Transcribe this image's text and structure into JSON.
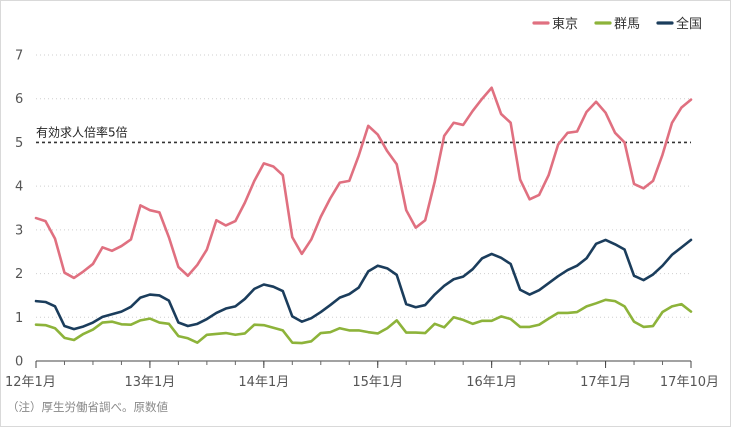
{
  "chart_data": {
    "type": "line",
    "title": "",
    "xlabel": "",
    "ylabel": "",
    "ylim": [
      0,
      7
    ],
    "yticks": [
      0,
      1,
      2,
      3,
      4,
      5,
      6,
      7
    ],
    "grid": "horizontal dotted",
    "legend_position": "top-right",
    "x_start": "2012-01",
    "x_end": "2017-10",
    "xtick_labels": [
      {
        "month": "2012-01",
        "label": "12年1月"
      },
      {
        "month": "2013-01",
        "label": "13年1月"
      },
      {
        "month": "2014-01",
        "label": "14年1月"
      },
      {
        "month": "2015-01",
        "label": "15年1月"
      },
      {
        "month": "2016-01",
        "label": "16年1月"
      },
      {
        "month": "2017-01",
        "label": "17年1月"
      },
      {
        "month": "2017-10",
        "label": "17年10月"
      }
    ],
    "reference_line": {
      "value": 5,
      "label": "有効求人倍率5倍"
    },
    "series": [
      {
        "name": "東京",
        "color": "#e07080",
        "values": [
          3.27,
          3.2,
          2.8,
          2.02,
          1.9,
          2.05,
          2.22,
          2.6,
          2.52,
          2.63,
          2.78,
          3.56,
          3.45,
          3.4,
          2.83,
          2.15,
          1.95,
          2.2,
          2.55,
          3.22,
          3.1,
          3.2,
          3.62,
          4.12,
          4.52,
          4.45,
          4.25,
          2.83,
          2.45,
          2.78,
          3.3,
          3.72,
          4.08,
          4.12,
          4.7,
          5.38,
          5.18,
          4.8,
          4.5,
          3.45,
          3.05,
          3.22,
          4.1,
          5.15,
          5.45,
          5.4,
          5.72,
          6.0,
          6.25,
          5.65,
          5.45,
          4.15,
          3.7,
          3.8,
          4.25,
          4.95,
          5.22,
          5.25,
          5.7,
          5.93,
          5.68,
          5.22,
          5.0,
          4.05,
          3.95,
          4.12,
          4.72,
          5.45,
          5.8,
          5.98
        ]
      },
      {
        "name": "群馬",
        "color": "#8db33a",
        "values": [
          0.83,
          0.82,
          0.75,
          0.53,
          0.48,
          0.62,
          0.72,
          0.88,
          0.9,
          0.84,
          0.83,
          0.93,
          0.97,
          0.88,
          0.85,
          0.57,
          0.52,
          0.42,
          0.6,
          0.62,
          0.64,
          0.6,
          0.63,
          0.83,
          0.82,
          0.76,
          0.7,
          0.42,
          0.41,
          0.45,
          0.64,
          0.66,
          0.75,
          0.7,
          0.7,
          0.66,
          0.63,
          0.75,
          0.93,
          0.65,
          0.65,
          0.64,
          0.85,
          0.77,
          1.0,
          0.94,
          0.85,
          0.92,
          0.92,
          1.02,
          0.96,
          0.78,
          0.78,
          0.83,
          0.97,
          1.1,
          1.1,
          1.12,
          1.25,
          1.32,
          1.4,
          1.37,
          1.25,
          0.9,
          0.78,
          0.8,
          1.12,
          1.25,
          1.3,
          1.13
        ]
      },
      {
        "name": "全国",
        "color": "#1b3d5c",
        "values": [
          1.37,
          1.35,
          1.25,
          0.8,
          0.73,
          0.79,
          0.88,
          1.01,
          1.07,
          1.13,
          1.24,
          1.45,
          1.52,
          1.5,
          1.38,
          0.88,
          0.8,
          0.85,
          0.96,
          1.1,
          1.2,
          1.25,
          1.42,
          1.65,
          1.75,
          1.7,
          1.6,
          1.02,
          0.9,
          0.98,
          1.12,
          1.28,
          1.45,
          1.53,
          1.68,
          2.05,
          2.18,
          2.12,
          1.97,
          1.3,
          1.23,
          1.28,
          1.52,
          1.72,
          1.87,
          1.93,
          2.1,
          2.35,
          2.45,
          2.36,
          2.22,
          1.63,
          1.52,
          1.62,
          1.78,
          1.94,
          2.08,
          2.18,
          2.35,
          2.68,
          2.77,
          2.67,
          2.55,
          1.95,
          1.85,
          1.98,
          2.18,
          2.43,
          2.6,
          2.77
        ]
      }
    ]
  },
  "footnote": "（注）厚生労働省調べ。原数値"
}
